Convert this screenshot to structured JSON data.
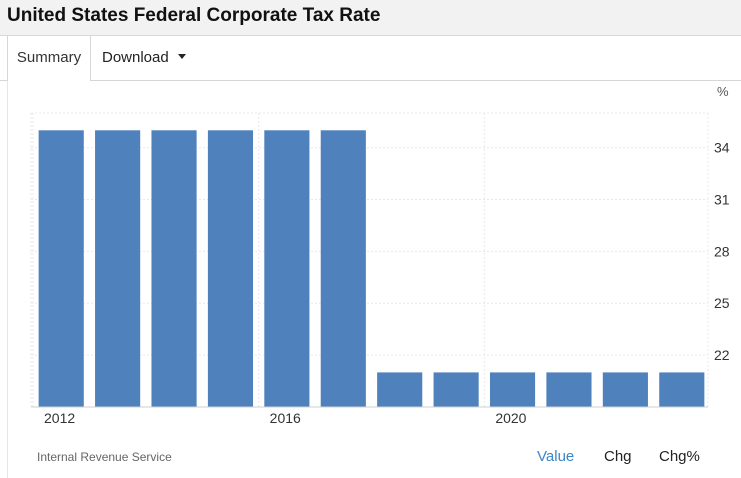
{
  "page": {
    "title": "United States Federal Corporate Tax Rate"
  },
  "tabs": {
    "summary_label": "Summary",
    "download_label": "Download"
  },
  "chart_data": {
    "type": "bar",
    "categories": [
      "2012",
      "2013",
      "2014",
      "2015",
      "2016",
      "2017",
      "2018",
      "2019",
      "2020",
      "2021",
      "2022",
      "2023"
    ],
    "values": [
      35,
      35,
      35,
      35,
      35,
      35,
      21,
      21,
      21,
      21,
      21,
      21
    ],
    "x_tick_labels": [
      "2012",
      "2016",
      "2020"
    ],
    "y_ticks": [
      22,
      25,
      28,
      31,
      34
    ],
    "unit": "%",
    "ylim": [
      19,
      36
    ],
    "y_axis_side": "right",
    "grid": true,
    "bar_color": "#4f81bd",
    "title": "",
    "xlabel": "",
    "ylabel": ""
  },
  "footer": {
    "source": "Internal Revenue Service",
    "links": {
      "value": "Value",
      "chg": "Chg",
      "chgpct": "Chg%"
    }
  },
  "colors": {
    "accent": "#3a87c8",
    "bar": "#4f81bd"
  }
}
